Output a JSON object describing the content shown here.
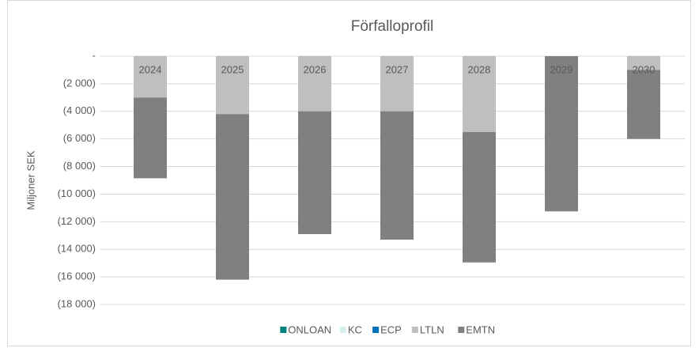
{
  "chart_data": {
    "type": "bar",
    "stacked": true,
    "title": "Förfalloprofil",
    "y_label": "Miljoner SEK",
    "categories": [
      "2024",
      "2025",
      "2026",
      "2027",
      "2028",
      "2029",
      "2030"
    ],
    "series": [
      {
        "name": "ONLOAN",
        "color": "#00827f",
        "values": [
          0,
          0,
          0,
          0,
          0,
          0,
          0
        ]
      },
      {
        "name": "KC",
        "color": "#d6f0f0",
        "values": [
          0,
          0,
          0,
          0,
          0,
          0,
          0
        ]
      },
      {
        "name": "ECP",
        "color": "#0070c0",
        "values": [
          0,
          0,
          0,
          0,
          0,
          0,
          0
        ]
      },
      {
        "name": "LTLN",
        "color": "#bfbfbf",
        "values": [
          -3000,
          -4200,
          -4000,
          -4000,
          -5500,
          0,
          -1000
        ]
      },
      {
        "name": "EMTN",
        "color": "#808080",
        "values": [
          -5850,
          -12000,
          -8900,
          -9300,
          -9450,
          -11250,
          -5000
        ]
      }
    ],
    "ylim": [
      -18000,
      0
    ],
    "yticks": [
      {
        "value": 0,
        "label": "-"
      },
      {
        "value": -2000,
        "label": "(2 000)"
      },
      {
        "value": -4000,
        "label": "(4 000)"
      },
      {
        "value": -6000,
        "label": "(6 000)"
      },
      {
        "value": -8000,
        "label": "(8 000)"
      },
      {
        "value": -10000,
        "label": "(10 000)"
      },
      {
        "value": -12000,
        "label": "(12 000)"
      },
      {
        "value": -14000,
        "label": "(14 000)"
      },
      {
        "value": -16000,
        "label": "(16 000)"
      },
      {
        "value": -18000,
        "label": "(18 000)"
      }
    ],
    "grid": true,
    "legend": "bottom"
  }
}
